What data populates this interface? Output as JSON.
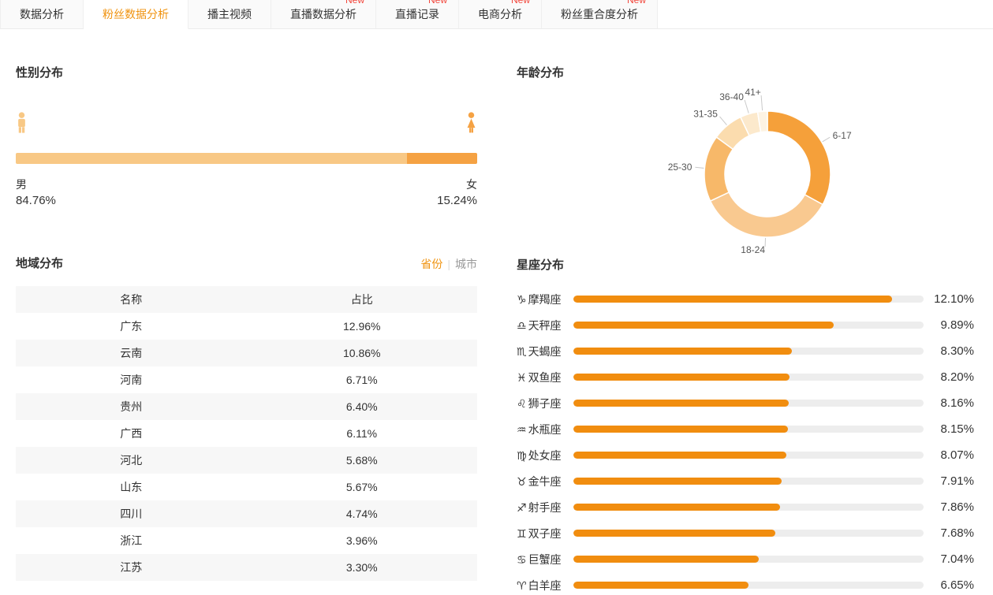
{
  "new_badge_label": "New",
  "tabs": [
    {
      "label": "数据分析",
      "active": false,
      "is_new": false
    },
    {
      "label": "粉丝数据分析",
      "active": true,
      "is_new": false
    },
    {
      "label": "播主视频",
      "active": false,
      "is_new": false
    },
    {
      "label": "直播数据分析",
      "active": false,
      "is_new": true
    },
    {
      "label": "直播记录",
      "active": false,
      "is_new": true
    },
    {
      "label": "电商分析",
      "active": false,
      "is_new": true
    },
    {
      "label": "粉丝重合度分析",
      "active": false,
      "is_new": true
    }
  ],
  "gender": {
    "title": "性别分布",
    "male_label": "男",
    "male_value": "84.76%",
    "female_label": "女",
    "female_value": "15.24%",
    "male_pct": 84.76,
    "female_pct": 15.24,
    "male_color": "#f8c885",
    "female_color": "#f5a243"
  },
  "region": {
    "title": "地域分布",
    "toggle": [
      {
        "label": "省份",
        "active": true
      },
      {
        "label": "城市",
        "active": false
      }
    ],
    "columns": [
      "名称",
      "占比"
    ],
    "rows": [
      [
        "广东",
        "12.96%"
      ],
      [
        "云南",
        "10.86%"
      ],
      [
        "河南",
        "6.71%"
      ],
      [
        "贵州",
        "6.40%"
      ],
      [
        "广西",
        "6.11%"
      ],
      [
        "河北",
        "5.68%"
      ],
      [
        "山东",
        "5.67%"
      ],
      [
        "四川",
        "4.74%"
      ],
      [
        "浙江",
        "3.96%"
      ],
      [
        "江苏",
        "3.30%"
      ]
    ]
  },
  "age": {
    "title": "年龄分布"
  },
  "zodiac": {
    "title": "星座分布"
  },
  "chart_data": [
    {
      "type": "pie",
      "donut": true,
      "title": "年龄分布",
      "categories": [
        "6-17",
        "18-24",
        "25-30",
        "31-35",
        "36-40",
        "41+"
      ],
      "values": [
        33,
        35,
        17,
        8,
        4.5,
        2.5
      ],
      "colors": [
        "#f5a03a",
        "#f9c990",
        "#f7b869",
        "#fbdcae",
        "#fce9cc",
        "#fdf3e3"
      ],
      "legend_position": "none",
      "labels": "outside"
    },
    {
      "type": "bar",
      "orientation": "horizontal",
      "title": "星座分布",
      "categories": [
        "摩羯座",
        "天秤座",
        "天蝎座",
        "双鱼座",
        "狮子座",
        "水瓶座",
        "处女座",
        "金牛座",
        "射手座",
        "双子座",
        "巨蟹座",
        "白羊座"
      ],
      "symbols": [
        "♑",
        "♎",
        "♏",
        "♓",
        "♌",
        "♒",
        "♍",
        "♉",
        "♐",
        "♊",
        "♋",
        "♈"
      ],
      "values": [
        12.1,
        9.89,
        8.3,
        8.2,
        8.16,
        8.15,
        8.07,
        7.91,
        7.86,
        7.68,
        7.04,
        6.65
      ],
      "value_labels": [
        "12.10%",
        "9.89%",
        "8.30%",
        "8.20%",
        "8.16%",
        "8.15%",
        "8.07%",
        "7.91%",
        "7.86%",
        "7.68%",
        "7.04%",
        "6.65%"
      ],
      "xlim": [
        0,
        13.3
      ],
      "bar_color": "#f18d0f",
      "track_color": "#ededed",
      "grid": false
    }
  ]
}
